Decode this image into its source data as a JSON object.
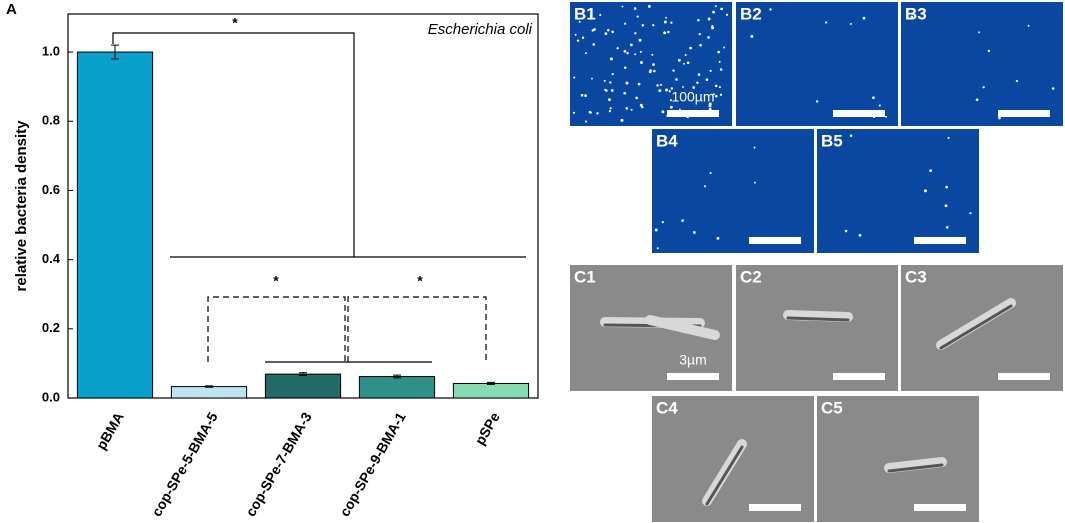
{
  "panel_label": "A",
  "chart_data": {
    "type": "bar",
    "y_label": "relative bacteria density",
    "annotation": "Escherichia coli",
    "categories": [
      "pBMA",
      "cop-SPe-5-BMA-5",
      "cop-SPe-7-BMA-3",
      "cop-SPe-9-BMA-1",
      "pSPe"
    ],
    "values": [
      1.0,
      0.033,
      0.069,
      0.062,
      0.042
    ],
    "errors": [
      0.02,
      0.002,
      0.004,
      0.004,
      0.003
    ],
    "colors": [
      "#0aa0cc",
      "#bfe4f1",
      "#236b68",
      "#2f8f8b",
      "#86dbb3"
    ],
    "ylim": [
      0,
      1.11
    ],
    "yticks": [
      {
        "value": 0,
        "label": "0.0"
      },
      0.2,
      0.4,
      0.6,
      0.8,
      {
        "value": 1,
        "label": "1.0"
      }
    ],
    "significance": [
      "*",
      "*",
      "*"
    ]
  },
  "micrographs": {
    "fluorescence": {
      "labels": [
        "B1",
        "B2",
        "B3",
        "B4",
        "B5"
      ],
      "scale_label": "100µm"
    },
    "sem": {
      "labels": [
        "C1",
        "C2",
        "C3",
        "C4",
        "C5"
      ],
      "scale_label": "3µm"
    }
  }
}
